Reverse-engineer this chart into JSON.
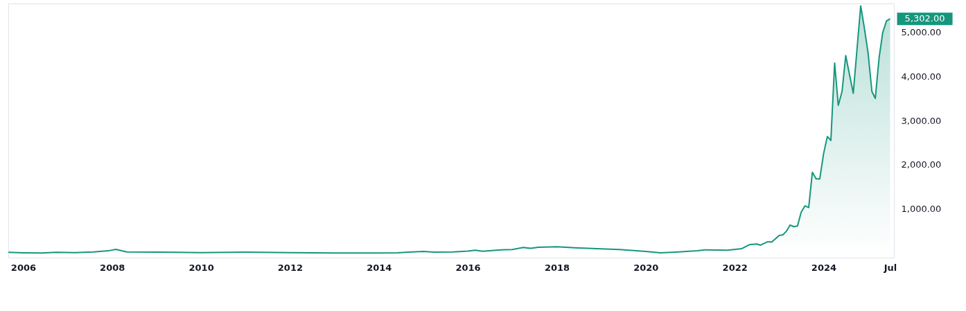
{
  "chart_data": {
    "type": "area",
    "x": [
      "2005-09",
      "2006-01",
      "2006-06",
      "2006-10",
      "2007-03",
      "2007-08",
      "2007-12",
      "2008-02",
      "2008-05",
      "2009-01",
      "2010-01",
      "2011-01",
      "2012-01",
      "2013-01",
      "2014-01",
      "2014-06",
      "2014-09",
      "2015-01",
      "2015-04",
      "2015-09",
      "2016-01",
      "2016-03",
      "2016-05",
      "2016-10",
      "2017-01",
      "2017-04",
      "2017-06",
      "2017-08",
      "2018-01",
      "2018-06",
      "2019-01",
      "2019-06",
      "2020-01",
      "2020-05",
      "2020-09",
      "2021-03",
      "2021-05",
      "2021-11",
      "2022-03",
      "2022-05",
      "2022-07",
      "2022-08",
      "2022-10",
      "2022-11",
      "2023-01",
      "2023-02",
      "2023-03",
      "2023-04",
      "2023-05",
      "2023-06",
      "2023-07",
      "2023-08",
      "2023-09",
      "2023-10",
      "2023-11",
      "2023-12",
      "2024-01",
      "2024-02",
      "2024-03",
      "2024-04",
      "2024-05",
      "2024-06",
      "2024-07",
      "2024-09",
      "2024-11",
      "2024-12",
      "2025-01",
      "2025-02",
      "2025-03",
      "2025-04",
      "2025-05",
      "2025-06",
      "2025-07"
    ],
    "series": [
      {
        "color": "#16967d",
        "values": [
          20,
          10,
          5,
          20,
          15,
          30,
          55,
          88,
          30,
          25,
          15,
          25,
          15,
          5,
          5,
          10,
          25,
          40,
          25,
          30,
          50,
          70,
          45,
          75,
          85,
          130,
          110,
          135,
          145,
          125,
          100,
          85,
          40,
          10,
          25,
          55,
          78,
          67,
          105,
          193,
          209,
          183,
          261,
          251,
          403,
          418,
          497,
          638,
          601,
          617,
          925,
          1072,
          1035,
          1830,
          1684,
          1684,
          2248,
          2640,
          2552,
          4303,
          3346,
          3660,
          4471,
          3618,
          5595,
          5098,
          4523,
          3660,
          3503,
          4418,
          4993,
          5255,
          5302
        ]
      }
    ],
    "xlim": [
      "2005-09",
      "2025-08"
    ],
    "xticks": [
      "2006",
      "2008",
      "2010",
      "2012",
      "2014",
      "2016",
      "2018",
      "2020",
      "2022",
      "2024",
      {
        "value": "2025-07",
        "label": "Jul"
      }
    ],
    "ylim": [
      -100,
      5650
    ],
    "yticks": [
      {
        "value": 1000,
        "label": "1,000.00"
      },
      {
        "value": 2000,
        "label": "2,000.00"
      },
      {
        "value": 3000,
        "label": "3,000.00"
      },
      {
        "value": 4000,
        "label": "4,000.00"
      },
      {
        "value": 5000,
        "label": "5,000.00"
      }
    ],
    "annotations": [
      {
        "text": "5,302.00",
        "x": "2025-07",
        "y": 5302
      }
    ],
    "grid": false
  }
}
